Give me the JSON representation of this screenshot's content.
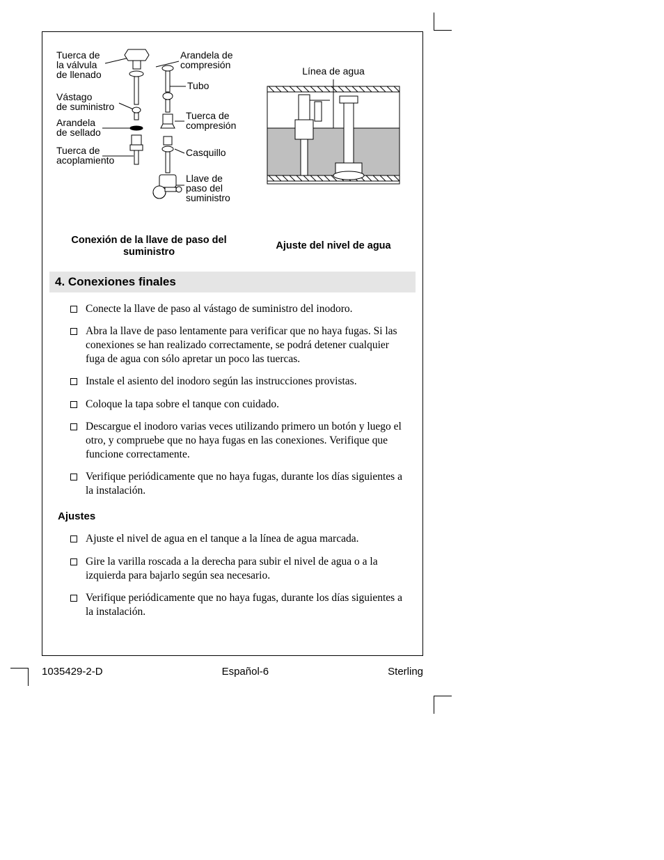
{
  "diagram_left": {
    "labels": {
      "tuerca_valvula": "Tuerca de\nla válvula\nde llenado",
      "arandela_compresion": "Arandela de\ncompresión",
      "tubo": "Tubo",
      "vastago": "Vástago\nde suministro",
      "tuerca_compresion": "Tuerca de\ncompresión",
      "arandela_sellado": "Arandela\nde sellado",
      "casquillo": "Casquillo",
      "tuerca_acoplamiento": "Tuerca de\nacoplamiento",
      "llave_paso": "Llave de\npaso del\nsuministro"
    },
    "caption": "Conexión de la llave de paso del\nsuministro",
    "svg": {
      "stroke": "#000000",
      "fill_light": "#ffffff",
      "line_width": 1
    }
  },
  "diagram_right": {
    "labels": {
      "linea_agua": "Línea de agua"
    },
    "caption": "Ajuste del nivel de agua",
    "svg": {
      "stroke": "#000000",
      "water_fill": "#bfbfbf",
      "tank_fill": "#ffffff",
      "line_width": 1
    }
  },
  "section": {
    "title": "4. Conexiones finales",
    "items": [
      "Conecte la llave de paso al vástago de suministro del inodoro.",
      "Abra la llave de paso lentamente para verificar que no haya fugas. Si las conexiones se han realizado correctamente, se podrá detener cualquier fuga de agua con sólo apretar un poco las tuercas.",
      "Instale el asiento del inodoro según las instrucciones provistas.",
      "Coloque la tapa sobre el tanque con cuidado.",
      "Descargue el inodoro varias veces utilizando primero un botón y luego el otro, y compruebe que no haya fugas en las conexiones. Verifique que funcione correctamente.",
      "Verifique periódicamente que no haya fugas, durante los días siguientes a la instalación."
    ]
  },
  "subsection": {
    "title": "Ajustes",
    "items": [
      "Ajuste el nivel de agua en el tanque a la línea de agua marcada.",
      "Gire la varilla roscada a la derecha para subir el nivel de agua o a la izquierda para bajarlo según sea necesario.",
      "Verifique periódicamente que no haya fugas, durante los días siguientes a la instalación."
    ]
  },
  "footer": {
    "left": "1035429-2-D",
    "center": "Español-6",
    "right": "Sterling"
  }
}
